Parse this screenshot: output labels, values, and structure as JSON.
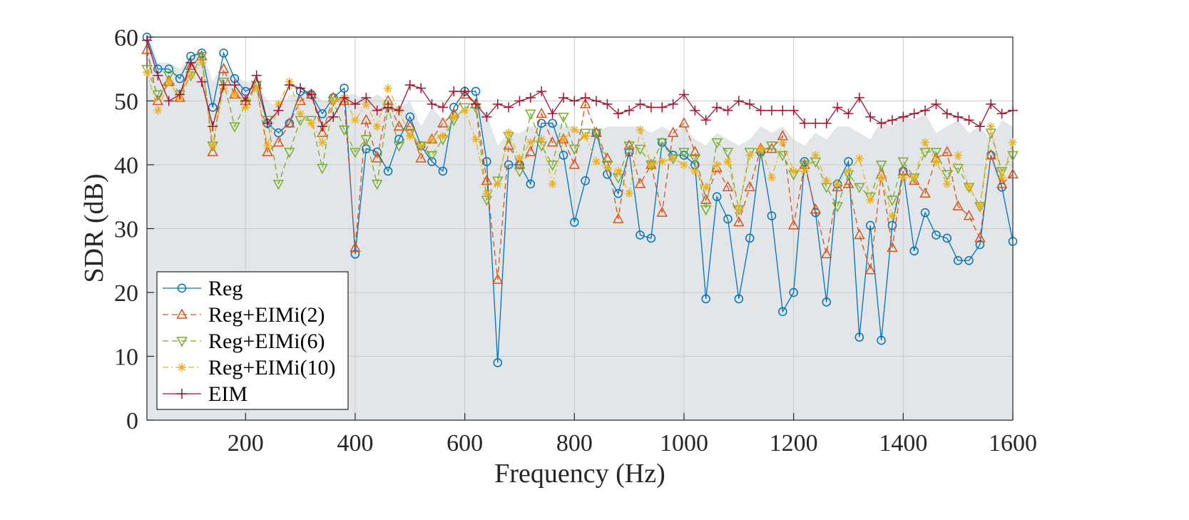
{
  "chart_data": {
    "type": "line",
    "xlabel": "Frequency (Hz)",
    "ylabel": "SDR (dB)",
    "xlim": [
      20,
      1600
    ],
    "ylim": [
      0,
      60
    ],
    "xticks": [
      200,
      400,
      600,
      800,
      1000,
      1200,
      1400,
      1600
    ],
    "yticks": [
      0,
      10,
      20,
      30,
      40,
      50,
      60
    ],
    "grid": true,
    "legend_position": "bottom-left",
    "x": [
      20,
      40,
      60,
      80,
      100,
      120,
      140,
      160,
      180,
      200,
      220,
      240,
      260,
      280,
      300,
      320,
      340,
      360,
      380,
      400,
      420,
      440,
      460,
      480,
      500,
      520,
      540,
      560,
      580,
      600,
      620,
      640,
      660,
      680,
      700,
      720,
      740,
      760,
      780,
      800,
      820,
      840,
      860,
      880,
      900,
      920,
      940,
      960,
      980,
      1000,
      1020,
      1040,
      1060,
      1080,
      1100,
      1120,
      1140,
      1160,
      1180,
      1200,
      1220,
      1240,
      1260,
      1280,
      1300,
      1320,
      1340,
      1360,
      1380,
      1400,
      1420,
      1440,
      1460,
      1480,
      1500,
      1520,
      1540,
      1560,
      1580,
      1600
    ],
    "background_band": [
      61,
      56,
      56,
      55,
      57,
      58,
      53,
      56,
      54,
      53,
      53,
      50,
      49,
      51,
      51,
      52,
      50,
      50,
      51,
      51,
      50,
      51,
      50,
      49,
      50,
      46,
      49,
      47,
      48,
      49,
      49,
      48,
      43,
      45,
      45,
      46,
      46,
      47,
      46,
      46,
      45,
      45,
      46,
      46,
      46,
      46,
      45,
      46,
      45,
      46,
      44,
      43,
      45,
      44,
      43,
      44,
      46,
      45,
      46,
      44,
      43,
      45,
      44,
      46,
      46,
      45,
      44,
      47,
      46,
      48,
      47,
      48,
      45,
      46,
      47,
      45,
      46,
      44,
      47,
      46
    ],
    "series": [
      {
        "name": "Reg",
        "color": "#0072BD",
        "marker": "circle",
        "dash": "solid",
        "values": [
          60,
          55,
          55,
          53.5,
          57,
          57.5,
          49,
          57.5,
          53.5,
          51.5,
          52.5,
          46.5,
          45,
          46.5,
          51.5,
          51,
          48,
          50.5,
          52,
          26,
          42.5,
          42,
          39,
          44,
          47.5,
          43,
          40.5,
          39,
          49,
          51.5,
          51.5,
          40.5,
          9,
          40,
          40,
          37,
          46.5,
          46.5,
          41.5,
          31,
          37.5,
          45,
          38.5,
          35.5,
          42,
          29,
          28.5,
          43.5,
          41.5,
          41.5,
          40,
          19,
          35,
          31.5,
          19,
          28.5,
          42,
          32,
          17,
          20,
          40.5,
          32.5,
          18.5,
          37,
          40.5,
          13,
          30.5,
          12.5,
          30.5,
          39,
          26.5,
          32.5,
          29,
          28.5,
          25,
          25,
          27.5,
          41.5,
          36.5,
          28
        ]
      },
      {
        "name": "Reg+EIMi(2)",
        "color": "#D95319",
        "marker": "triangle-up",
        "dash": "dashed",
        "values": [
          58,
          50,
          53,
          50.5,
          55.5,
          57,
          42,
          55,
          51,
          50,
          52.5,
          42,
          43.5,
          46.5,
          50,
          51,
          45,
          50.5,
          50,
          27,
          47,
          41,
          50,
          46,
          46,
          41,
          44,
          46.5,
          48,
          51,
          49.5,
          37.5,
          22,
          43,
          40,
          42,
          48,
          43.5,
          44,
          40,
          49.5,
          45,
          41,
          31.5,
          43,
          37,
          40,
          32.5,
          45,
          46.5,
          42,
          34.5,
          39.5,
          36.5,
          31,
          36.5,
          42.5,
          42.5,
          44.5,
          30.5,
          40,
          33,
          26,
          36.5,
          37,
          29,
          23.5,
          38.5,
          27,
          39,
          37.5,
          35.5,
          41,
          42,
          33.5,
          32,
          28.5,
          41.5,
          37,
          38.5
        ]
      },
      {
        "name": "Reg+EIMi(6)",
        "color": "#77AC30",
        "marker": "triangle-down",
        "dash": "dashed",
        "values": [
          55,
          51,
          54,
          51,
          54,
          57,
          43,
          53,
          46,
          49.5,
          52.5,
          47,
          37,
          42,
          47,
          47,
          39.5,
          50,
          45.5,
          42,
          44,
          37,
          49,
          43,
          45,
          43,
          41.5,
          44,
          47,
          49,
          49,
          34.5,
          37.5,
          44.5,
          39,
          48,
          43,
          40,
          47.5,
          42.5,
          45,
          45,
          40,
          38,
          43,
          42.5,
          40,
          43.5,
          41,
          42,
          41,
          33,
          43.5,
          42,
          33,
          42,
          42,
          43,
          41.5,
          38.5,
          40,
          40.5,
          36.5,
          33.5,
          38.5,
          36.5,
          35,
          40,
          34.5,
          40.5,
          38,
          42,
          42,
          38.5,
          39.5,
          36.5,
          33.5,
          45,
          39,
          41.5
        ]
      },
      {
        "name": "Reg+EIMi(10)",
        "color": "#EDB120",
        "marker": "asterisk",
        "dash": "dashdot",
        "values": [
          54.5,
          48.5,
          53,
          50.5,
          54,
          56,
          43,
          52,
          51,
          49,
          52,
          43,
          49.5,
          53,
          48,
          46.5,
          43.5,
          50,
          50.5,
          47,
          49.5,
          46,
          52,
          48.5,
          44.5,
          43,
          44,
          44.5,
          47.5,
          48.5,
          44,
          35.5,
          37,
          45,
          41,
          43.5,
          44,
          37,
          44,
          45.5,
          44.5,
          40.5,
          39.5,
          39,
          35.5,
          45.5,
          40,
          40.5,
          41,
          40,
          39,
          36.5,
          40,
          40.5,
          33,
          41.5,
          42.5,
          38,
          43.5,
          39,
          39,
          41.5,
          37.5,
          37,
          39,
          41,
          34.5,
          38,
          32,
          38,
          38,
          43.5,
          40.5,
          37,
          41.5,
          36.5,
          33.5,
          46,
          38,
          43.5
        ]
      },
      {
        "name": "EIM",
        "color": "#A2142F",
        "marker": "plus",
        "dash": "solid",
        "values": [
          59.5,
          54,
          50,
          51,
          56,
          53,
          46,
          52.5,
          52.5,
          50,
          54,
          46.5,
          48.5,
          52.5,
          52,
          51,
          46,
          47.5,
          50.5,
          49.5,
          50.5,
          48.5,
          49,
          48.5,
          52.5,
          52,
          49.5,
          49,
          51.5,
          51.5,
          49.5,
          47.5,
          49.5,
          49,
          50,
          50.5,
          51.5,
          48,
          50.5,
          50,
          50.5,
          50,
          49.5,
          48,
          48.5,
          49.5,
          49,
          49,
          49.5,
          51,
          48.5,
          47,
          49,
          48.5,
          50,
          49.5,
          48.5,
          48.5,
          48.5,
          48.5,
          46.5,
          46.5,
          46.5,
          49,
          48,
          50.5,
          47.5,
          46.5,
          47,
          47.5,
          48,
          48.5,
          49.5,
          48,
          47.5,
          47,
          46,
          49.5,
          48,
          48.5
        ]
      }
    ]
  }
}
